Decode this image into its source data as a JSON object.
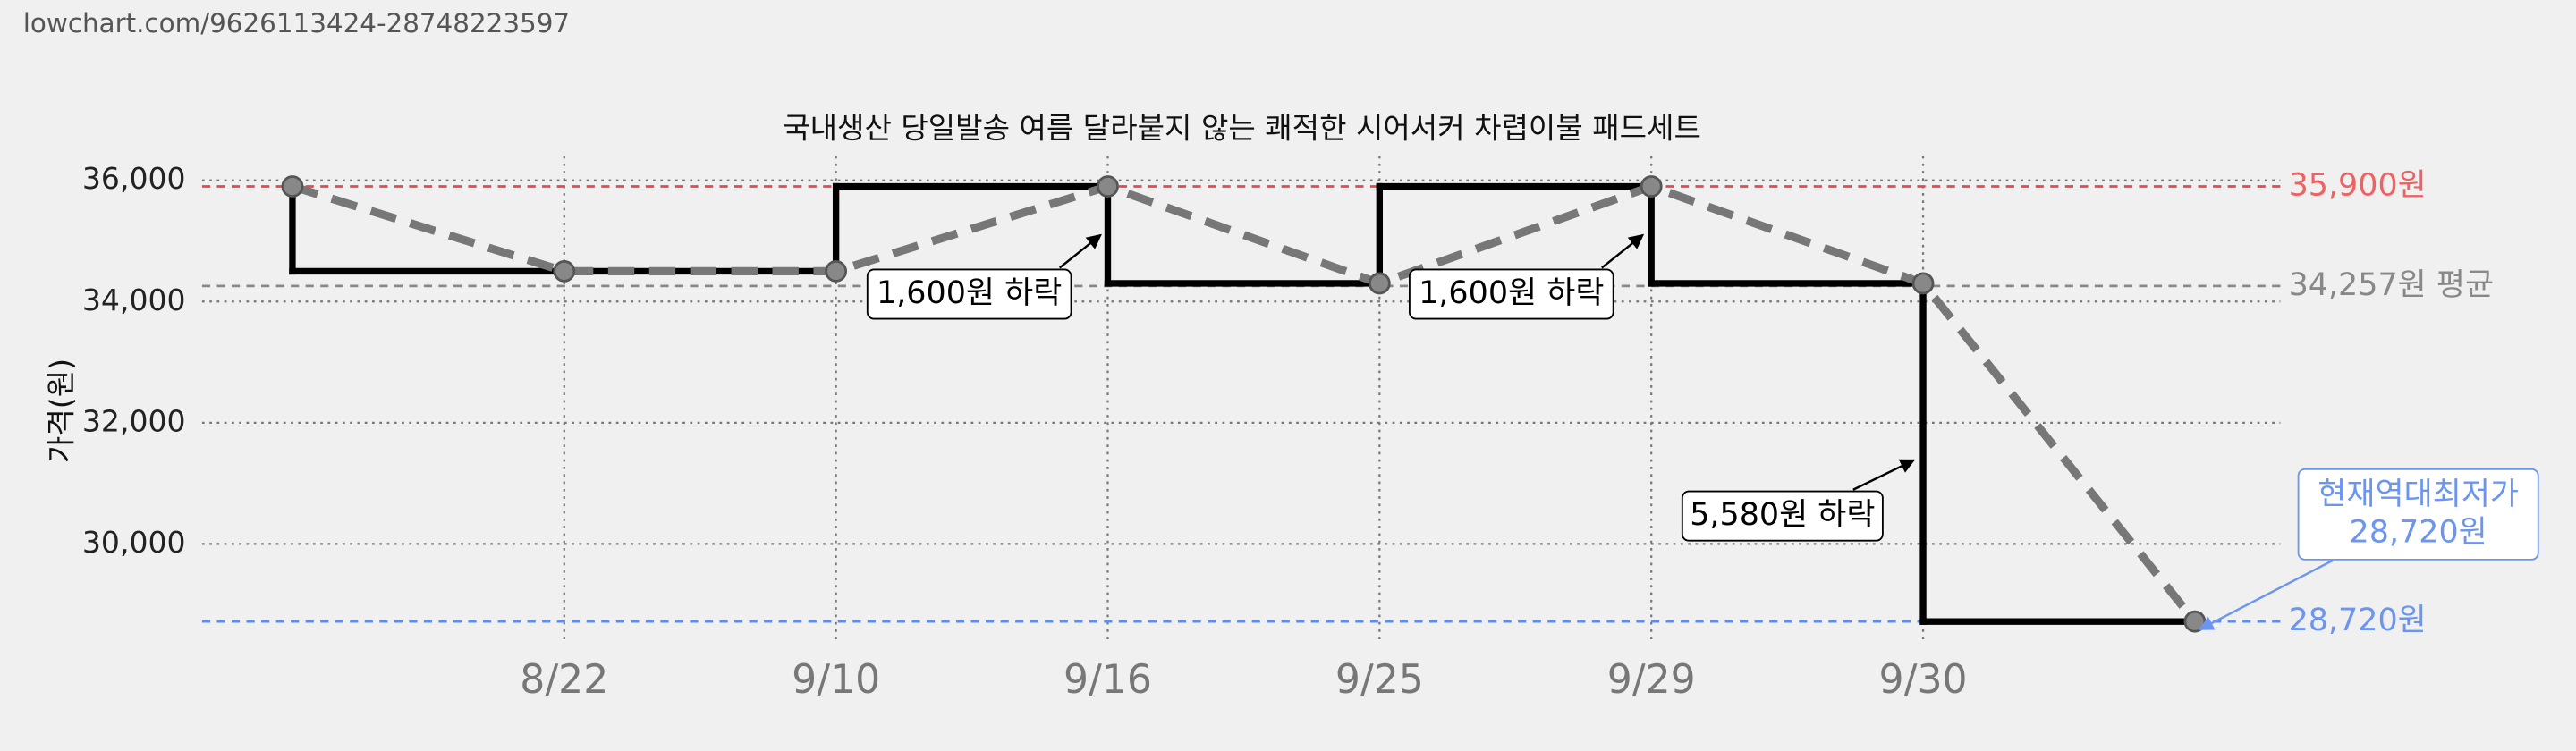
{
  "url": "lowchart.com/9626113424-28748223597",
  "chart_data": {
    "type": "line",
    "title": "국내생산 당일발송 여름 달라붙지 않는 쾌적한 시어서커 차렵이불 패드세트",
    "y_label": "가격(원)",
    "categories": [
      null,
      "8/22",
      "9/10",
      "9/16",
      "9/25",
      "9/29",
      "9/30",
      null
    ],
    "series": [
      {
        "values": [
          35900,
          34500,
          34500,
          35900,
          34300,
          35900,
          34300,
          28720
        ],
        "color": "#777777",
        "step_color": "#000000"
      }
    ],
    "ylim": [
      28400,
      36400
    ],
    "yticks": [
      {
        "value": 30000,
        "label": "30,000"
      },
      {
        "value": 32000,
        "label": "32,000"
      },
      {
        "value": 34000,
        "label": "34,000"
      },
      {
        "value": 36000,
        "label": "36,000"
      }
    ],
    "grid": true,
    "reference_lines": [
      {
        "value": 35900,
        "label": "35,900원",
        "color": "#e8474c",
        "text_color": "#f06262"
      },
      {
        "value": 34257,
        "label": "34,257원 평균",
        "color": "#888888",
        "text_color": "#888888"
      },
      {
        "value": 28720,
        "label": "28,720원",
        "color": "#5b8def",
        "text_color": "#6b95f0"
      }
    ],
    "annotations": [
      {
        "lines": [
          "1,600원 하락"
        ]
      },
      {
        "lines": [
          "1,600원 하락"
        ]
      },
      {
        "lines": [
          "5,580원 하락"
        ]
      },
      {
        "lines": [
          "현재역대최저가",
          "28,720원"
        ],
        "color": "#6b95f0"
      }
    ]
  }
}
